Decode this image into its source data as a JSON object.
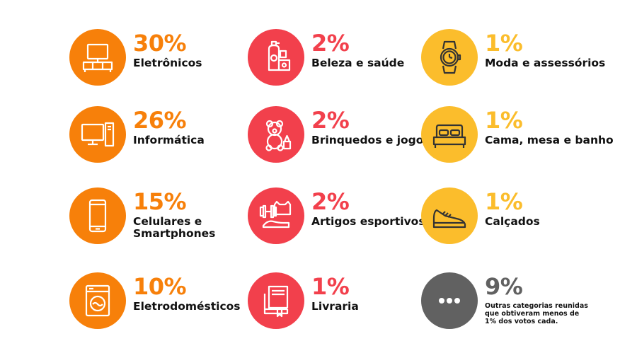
{
  "chart_data": {
    "type": "table",
    "colors": {
      "orange": "#f7800a",
      "red": "#f2404c",
      "yellow": "#fbbd2c",
      "gray": "#616161"
    },
    "items": [
      {
        "pct": "30%",
        "label": "Eletrônicos",
        "color": "#f7800a",
        "icon": "tv-stand-icon"
      },
      {
        "pct": "26%",
        "label": "Informática",
        "color": "#f7800a",
        "icon": "desktop-computer-icon"
      },
      {
        "pct": "15%",
        "label": "Celulares e Smartphones",
        "color": "#f7800a",
        "icon": "smartphone-icon"
      },
      {
        "pct": "10%",
        "label": "Eletrodomésticos",
        "color": "#f7800a",
        "icon": "washing-machine-icon"
      },
      {
        "pct": "2%",
        "label": "Beleza e saúde",
        "color": "#f2404c",
        "icon": "cosmetics-icon"
      },
      {
        "pct": "2%",
        "label": "Brinquedos e jogos",
        "color": "#f2404c",
        "icon": "teddy-bear-icon"
      },
      {
        "pct": "2%",
        "label": "Artigos esportivos",
        "color": "#f2404c",
        "icon": "sports-gear-icon"
      },
      {
        "pct": "1%",
        "label": "Livraria",
        "color": "#f2404c",
        "icon": "books-icon"
      },
      {
        "pct": "1%",
        "label": "Moda e assessórios",
        "color": "#fbbd2c",
        "icon": "wristwatch-icon"
      },
      {
        "pct": "1%",
        "label": "Cama, mesa e banho",
        "color": "#fbbd2c",
        "icon": "bed-icon"
      },
      {
        "pct": "1%",
        "label": "Calçados",
        "color": "#fbbd2c",
        "icon": "shoe-icon"
      },
      {
        "pct": "9%",
        "label": "Outras categorias reunidas que obtiveram menos de 1% dos votos cada.",
        "color": "#616161",
        "icon": "ellipsis-icon"
      }
    ]
  }
}
